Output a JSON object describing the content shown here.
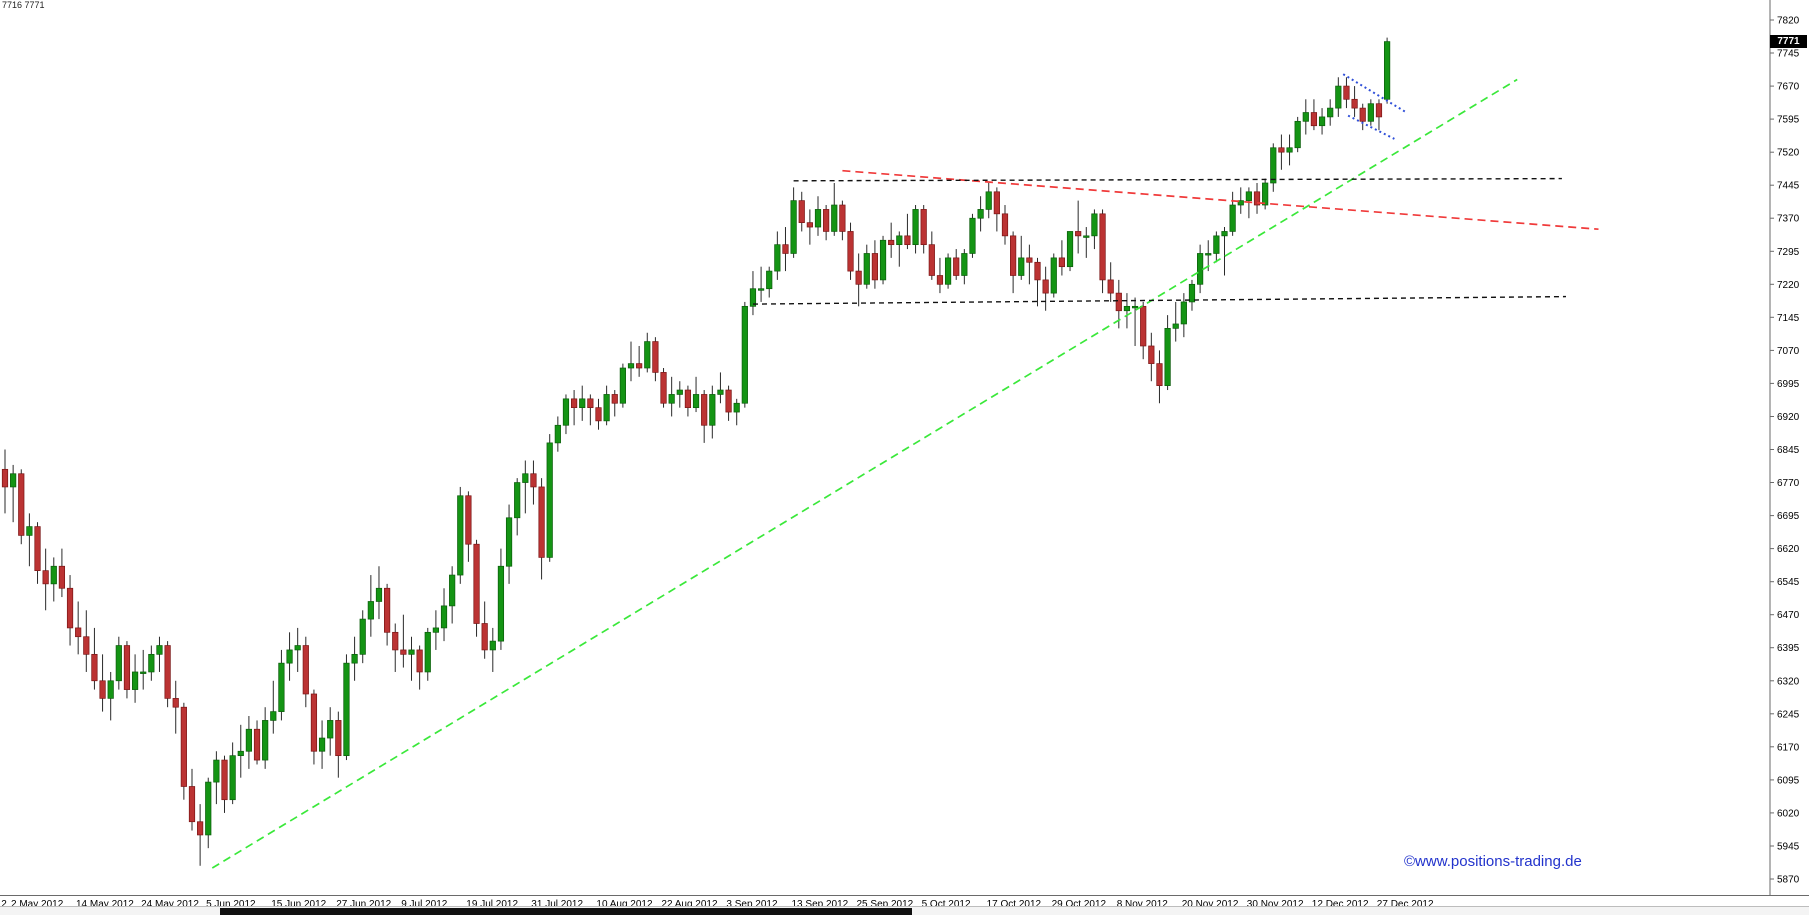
{
  "window": {
    "info_text": "7716 7771",
    "watermark_text": "©www.positions-trading.de",
    "price_tag": "7771"
  },
  "chart_data": {
    "type": "candlestick",
    "title": "",
    "xlabel": "",
    "ylabel": "",
    "ylim": [
      5870,
      7820
    ],
    "grid": false,
    "legend": false,
    "last_price": 7771,
    "colors": {
      "up": "#149414",
      "up_edge": "#0a5c0a",
      "down": "#bb3333",
      "down_edge": "#7a1515",
      "wick": "#2a2a2a",
      "green_trend": "#3ae83a",
      "red_trend": "#f03a3a",
      "black_line": "#111111",
      "blue_flag": "#2f4fd8"
    },
    "y_axis": {
      "step": 75,
      "ticks": [
        7820,
        7745,
        7670,
        7595,
        7520,
        7445,
        7370,
        7295,
        7220,
        7145,
        7070,
        6995,
        6920,
        6845,
        6770,
        6695,
        6620,
        6545,
        6470,
        6395,
        6320,
        6245,
        6170,
        6095,
        6020,
        5945,
        5870
      ]
    },
    "x_axis": {
      "ticks": [
        {
          "label": "2",
          "index": -1.2
        },
        {
          "label": "2 May 2012",
          "index": 0
        },
        {
          "label": "14 May 2012",
          "index": 8
        },
        {
          "label": "24 May 2012",
          "index": 16
        },
        {
          "label": "5 Jun 2012",
          "index": 24
        },
        {
          "label": "15 Jun 2012",
          "index": 32
        },
        {
          "label": "27 Jun 2012",
          "index": 40
        },
        {
          "label": "9 Jul 2012",
          "index": 48
        },
        {
          "label": "19 Jul 2012",
          "index": 56
        },
        {
          "label": "31 Jul 2012",
          "index": 64
        },
        {
          "label": "10 Aug 2012",
          "index": 72
        },
        {
          "label": "22 Aug 2012",
          "index": 80
        },
        {
          "label": "3 Sep 2012",
          "index": 88
        },
        {
          "label": "13 Sep 2012",
          "index": 96
        },
        {
          "label": "25 Sep 2012",
          "index": 104
        },
        {
          "label": "5 Oct 2012",
          "index": 112
        },
        {
          "label": "17 Oct 2012",
          "index": 120
        },
        {
          "label": "29 Oct 2012",
          "index": 128
        },
        {
          "label": "8 Nov 2012",
          "index": 136
        },
        {
          "label": "20 Nov 2012",
          "index": 144
        },
        {
          "label": "30 Nov 2012",
          "index": 152
        },
        {
          "label": "12 Dec 2012",
          "index": 160
        },
        {
          "label": "27 Dec 2012",
          "index": 168
        }
      ]
    },
    "candles": [
      [
        6800,
        6845,
        6700,
        6760
      ],
      [
        6760,
        6810,
        6680,
        6790
      ],
      [
        6790,
        6800,
        6630,
        6650
      ],
      [
        6650,
        6700,
        6580,
        6670
      ],
      [
        6670,
        6680,
        6540,
        6570
      ],
      [
        6570,
        6620,
        6480,
        6540
      ],
      [
        6540,
        6600,
        6500,
        6580
      ],
      [
        6580,
        6620,
        6510,
        6530
      ],
      [
        6530,
        6560,
        6400,
        6440
      ],
      [
        6440,
        6500,
        6380,
        6420
      ],
      [
        6420,
        6480,
        6340,
        6380
      ],
      [
        6380,
        6440,
        6300,
        6320
      ],
      [
        6320,
        6380,
        6250,
        6280
      ],
      [
        6280,
        6340,
        6230,
        6320
      ],
      [
        6320,
        6420,
        6300,
        6400
      ],
      [
        6400,
        6410,
        6280,
        6300
      ],
      [
        6300,
        6380,
        6270,
        6340
      ],
      [
        6340,
        6390,
        6300,
        6340
      ],
      [
        6340,
        6400,
        6320,
        6380
      ],
      [
        6380,
        6420,
        6340,
        6400
      ],
      [
        6400,
        6410,
        6260,
        6280
      ],
      [
        6280,
        6320,
        6200,
        6260
      ],
      [
        6260,
        6270,
        6050,
        6080
      ],
      [
        6080,
        6120,
        5980,
        6000
      ],
      [
        6000,
        6040,
        5900,
        5970
      ],
      [
        5970,
        6100,
        5940,
        6090
      ],
      [
        6090,
        6160,
        6040,
        6140
      ],
      [
        6140,
        6150,
        6020,
        6050
      ],
      [
        6050,
        6180,
        6040,
        6150
      ],
      [
        6150,
        6220,
        6100,
        6160
      ],
      [
        6160,
        6240,
        6120,
        6210
      ],
      [
        6210,
        6230,
        6130,
        6140
      ],
      [
        6140,
        6260,
        6120,
        6230
      ],
      [
        6230,
        6320,
        6200,
        6250
      ],
      [
        6250,
        6390,
        6230,
        6360
      ],
      [
        6360,
        6430,
        6320,
        6390
      ],
      [
        6390,
        6440,
        6340,
        6400
      ],
      [
        6400,
        6420,
        6260,
        6290
      ],
      [
        6290,
        6300,
        6130,
        6160
      ],
      [
        6160,
        6230,
        6120,
        6190
      ],
      [
        6190,
        6260,
        6150,
        6230
      ],
      [
        6230,
        6250,
        6100,
        6150
      ],
      [
        6150,
        6380,
        6140,
        6360
      ],
      [
        6360,
        6420,
        6320,
        6380
      ],
      [
        6380,
        6480,
        6360,
        6460
      ],
      [
        6460,
        6560,
        6420,
        6500
      ],
      [
        6500,
        6580,
        6460,
        6530
      ],
      [
        6530,
        6540,
        6400,
        6430
      ],
      [
        6430,
        6450,
        6340,
        6390
      ],
      [
        6390,
        6470,
        6350,
        6380
      ],
      [
        6380,
        6420,
        6320,
        6390
      ],
      [
        6390,
        6400,
        6300,
        6340
      ],
      [
        6340,
        6440,
        6320,
        6430
      ],
      [
        6430,
        6480,
        6390,
        6440
      ],
      [
        6440,
        6530,
        6410,
        6490
      ],
      [
        6490,
        6580,
        6450,
        6560
      ],
      [
        6560,
        6760,
        6540,
        6740
      ],
      [
        6740,
        6750,
        6590,
        6630
      ],
      [
        6630,
        6640,
        6420,
        6450
      ],
      [
        6450,
        6500,
        6370,
        6390
      ],
      [
        6390,
        6440,
        6340,
        6410
      ],
      [
        6410,
        6620,
        6390,
        6580
      ],
      [
        6580,
        6720,
        6540,
        6690
      ],
      [
        6690,
        6780,
        6650,
        6770
      ],
      [
        6770,
        6820,
        6700,
        6790
      ],
      [
        6790,
        6820,
        6720,
        6760
      ],
      [
        6760,
        6780,
        6550,
        6600
      ],
      [
        6600,
        6880,
        6590,
        6860
      ],
      [
        6860,
        6920,
        6840,
        6900
      ],
      [
        6900,
        6970,
        6880,
        6960
      ],
      [
        6960,
        6980,
        6900,
        6940
      ],
      [
        6940,
        6990,
        6910,
        6960
      ],
      [
        6960,
        6970,
        6900,
        6940
      ],
      [
        6940,
        6960,
        6890,
        6910
      ],
      [
        6910,
        6990,
        6900,
        6970
      ],
      [
        6970,
        6980,
        6920,
        6950
      ],
      [
        6950,
        7040,
        6940,
        7030
      ],
      [
        7030,
        7090,
        7000,
        7040
      ],
      [
        7040,
        7080,
        7010,
        7030
      ],
      [
        7030,
        7110,
        7020,
        7090
      ],
      [
        7090,
        7100,
        7000,
        7020
      ],
      [
        7020,
        7030,
        6940,
        6950
      ],
      [
        6950,
        7010,
        6920,
        6970
      ],
      [
        6970,
        7000,
        6940,
        6980
      ],
      [
        6980,
        6990,
        6920,
        6940
      ],
      [
        6940,
        7010,
        6930,
        6970
      ],
      [
        6970,
        6980,
        6860,
        6900
      ],
      [
        6900,
        6990,
        6870,
        6970
      ],
      [
        6970,
        7020,
        6950,
        6980
      ],
      [
        6980,
        6990,
        6910,
        6930
      ],
      [
        6930,
        6960,
        6900,
        6950
      ],
      [
        6950,
        7180,
        6940,
        7170
      ],
      [
        7170,
        7250,
        7150,
        7210
      ],
      [
        7210,
        7260,
        7180,
        7210
      ],
      [
        7210,
        7260,
        7190,
        7250
      ],
      [
        7250,
        7340,
        7230,
        7310
      ],
      [
        7310,
        7350,
        7250,
        7290
      ],
      [
        7290,
        7440,
        7280,
        7410
      ],
      [
        7410,
        7430,
        7340,
        7360
      ],
      [
        7360,
        7390,
        7310,
        7350
      ],
      [
        7350,
        7420,
        7330,
        7390
      ],
      [
        7390,
        7400,
        7320,
        7340
      ],
      [
        7340,
        7450,
        7330,
        7400
      ],
      [
        7400,
        7410,
        7320,
        7340
      ],
      [
        7340,
        7360,
        7230,
        7250
      ],
      [
        7250,
        7290,
        7170,
        7220
      ],
      [
        7220,
        7310,
        7210,
        7290
      ],
      [
        7290,
        7320,
        7210,
        7230
      ],
      [
        7230,
        7330,
        7220,
        7320
      ],
      [
        7320,
        7360,
        7280,
        7310
      ],
      [
        7310,
        7340,
        7260,
        7330
      ],
      [
        7330,
        7380,
        7300,
        7310
      ],
      [
        7310,
        7400,
        7290,
        7390
      ],
      [
        7390,
        7400,
        7290,
        7310
      ],
      [
        7310,
        7340,
        7230,
        7240
      ],
      [
        7240,
        7280,
        7200,
        7220
      ],
      [
        7220,
        7290,
        7210,
        7280
      ],
      [
        7280,
        7300,
        7230,
        7240
      ],
      [
        7240,
        7300,
        7220,
        7290
      ],
      [
        7290,
        7380,
        7280,
        7370
      ],
      [
        7370,
        7420,
        7340,
        7390
      ],
      [
        7390,
        7450,
        7370,
        7430
      ],
      [
        7430,
        7440,
        7340,
        7380
      ],
      [
        7380,
        7400,
        7310,
        7330
      ],
      [
        7330,
        7340,
        7200,
        7240
      ],
      [
        7240,
        7330,
        7230,
        7280
      ],
      [
        7280,
        7310,
        7220,
        7270
      ],
      [
        7270,
        7280,
        7170,
        7230
      ],
      [
        7230,
        7260,
        7160,
        7200
      ],
      [
        7200,
        7290,
        7190,
        7280
      ],
      [
        7280,
        7320,
        7240,
        7260
      ],
      [
        7260,
        7340,
        7250,
        7340
      ],
      [
        7340,
        7410,
        7290,
        7330
      ],
      [
        7330,
        7350,
        7280,
        7330
      ],
      [
        7330,
        7390,
        7300,
        7380
      ],
      [
        7380,
        7390,
        7200,
        7230
      ],
      [
        7230,
        7270,
        7180,
        7200
      ],
      [
        7200,
        7230,
        7120,
        7160
      ],
      [
        7160,
        7200,
        7120,
        7170
      ],
      [
        7170,
        7190,
        7080,
        7170
      ],
      [
        7170,
        7180,
        7050,
        7080
      ],
      [
        7080,
        7110,
        7000,
        7040
      ],
      [
        7040,
        7070,
        6950,
        6990
      ],
      [
        6990,
        7150,
        6980,
        7120
      ],
      [
        7120,
        7180,
        7090,
        7130
      ],
      [
        7130,
        7200,
        7100,
        7180
      ],
      [
        7180,
        7230,
        7160,
        7220
      ],
      [
        7220,
        7310,
        7200,
        7290
      ],
      [
        7290,
        7320,
        7250,
        7290
      ],
      [
        7290,
        7340,
        7270,
        7330
      ],
      [
        7330,
        7350,
        7240,
        7340
      ],
      [
        7340,
        7430,
        7330,
        7400
      ],
      [
        7400,
        7440,
        7380,
        7410
      ],
      [
        7410,
        7440,
        7370,
        7430
      ],
      [
        7430,
        7450,
        7380,
        7400
      ],
      [
        7400,
        7460,
        7390,
        7450
      ],
      [
        7450,
        7540,
        7430,
        7530
      ],
      [
        7530,
        7560,
        7480,
        7520
      ],
      [
        7520,
        7560,
        7490,
        7530
      ],
      [
        7530,
        7600,
        7520,
        7590
      ],
      [
        7590,
        7640,
        7560,
        7610
      ],
      [
        7610,
        7640,
        7570,
        7580
      ],
      [
        7580,
        7620,
        7560,
        7600
      ],
      [
        7600,
        7640,
        7580,
        7620
      ],
      [
        7620,
        7690,
        7600,
        7670
      ],
      [
        7670,
        7690,
        7620,
        7640
      ],
      [
        7640,
        7670,
        7600,
        7620
      ],
      [
        7620,
        7630,
        7570,
        7590
      ],
      [
        7590,
        7640,
        7580,
        7630
      ],
      [
        7630,
        7640,
        7570,
        7600
      ],
      [
        7640,
        7780,
        7630,
        7771
      ]
    ],
    "overlays": [
      {
        "name": "green-uptrend-line",
        "from": [
          25.5,
          5895
        ],
        "to": [
          186,
          7685
        ],
        "color": "#3ae83a",
        "dash": "8 5",
        "width": 1.7
      },
      {
        "name": "red-downtrend-line",
        "from": [
          103,
          7478
        ],
        "to": [
          196,
          7345
        ],
        "color": "#f03a3a",
        "dash": "8 5",
        "width": 1.7
      },
      {
        "name": "upper-resistance-line",
        "from": [
          97,
          7455
        ],
        "to": [
          191.5,
          7460
        ],
        "color": "#111111",
        "dash": "5 4",
        "width": 1.4
      },
      {
        "name": "lower-support-line",
        "from": [
          92,
          7175
        ],
        "to": [
          192,
          7192
        ],
        "color": "#111111",
        "dash": "5 4",
        "width": 1.4
      },
      {
        "name": "flag-upper-line",
        "from": [
          164.6,
          7697
        ],
        "to": [
          172.2,
          7612
        ],
        "color": "#2f4fd8",
        "dash": "2 3",
        "width": 2
      },
      {
        "name": "flag-lower-line",
        "from": [
          165.2,
          7603
        ],
        "to": [
          170.9,
          7550
        ],
        "color": "#2f4fd8",
        "dash": "2 3",
        "width": 2
      }
    ]
  }
}
